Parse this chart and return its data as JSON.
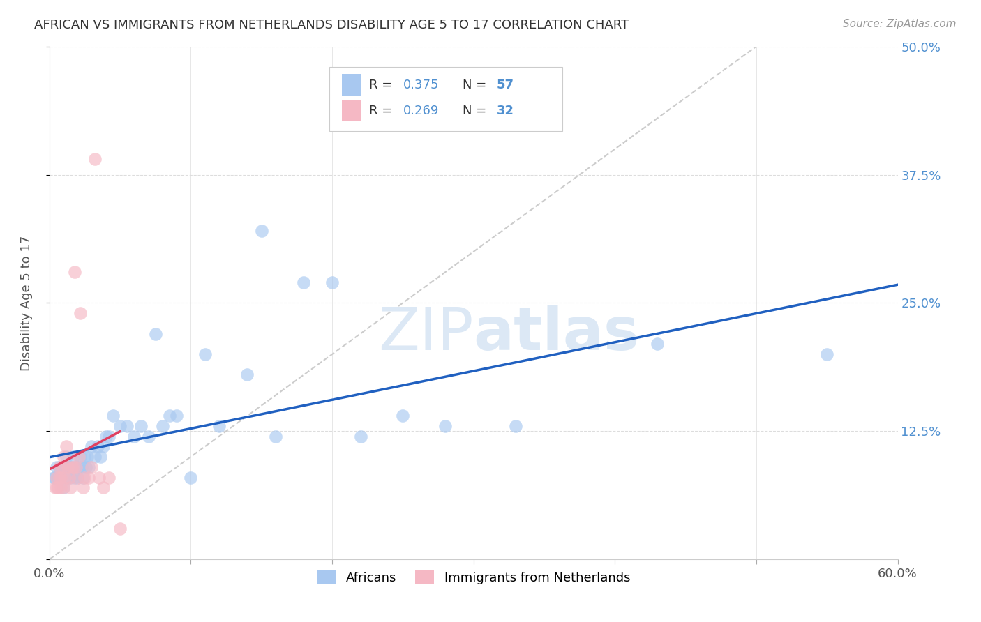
{
  "title": "AFRICAN VS IMMIGRANTS FROM NETHERLANDS DISABILITY AGE 5 TO 17 CORRELATION CHART",
  "source": "Source: ZipAtlas.com",
  "ylabel": "Disability Age 5 to 17",
  "xlim": [
    0.0,
    0.6
  ],
  "ylim": [
    0.0,
    0.5
  ],
  "blue_color": "#a8c8f0",
  "pink_color": "#f5b8c4",
  "blue_line_color": "#2060c0",
  "pink_line_color": "#e04060",
  "diagonal_color": "#cccccc",
  "grid_color": "#dddddd",
  "title_color": "#333333",
  "right_tick_color": "#5090d0",
  "watermark_color": "#dce8f5",
  "africans_x": [
    0.003,
    0.004,
    0.005,
    0.006,
    0.007,
    0.008,
    0.009,
    0.01,
    0.011,
    0.012,
    0.013,
    0.014,
    0.015,
    0.016,
    0.017,
    0.018,
    0.019,
    0.02,
    0.021,
    0.022,
    0.023,
    0.024,
    0.025,
    0.026,
    0.027,
    0.028,
    0.03,
    0.032,
    0.034,
    0.036,
    0.038,
    0.04,
    0.042,
    0.045,
    0.05,
    0.055,
    0.06,
    0.065,
    0.07,
    0.075,
    0.08,
    0.085,
    0.09,
    0.1,
    0.11,
    0.12,
    0.14,
    0.15,
    0.16,
    0.18,
    0.2,
    0.22,
    0.25,
    0.28,
    0.33,
    0.43,
    0.55
  ],
  "africans_y": [
    0.08,
    0.08,
    0.09,
    0.08,
    0.09,
    0.08,
    0.09,
    0.07,
    0.09,
    0.1,
    0.08,
    0.09,
    0.08,
    0.09,
    0.1,
    0.08,
    0.09,
    0.08,
    0.09,
    0.1,
    0.09,
    0.08,
    0.1,
    0.09,
    0.1,
    0.09,
    0.11,
    0.1,
    0.11,
    0.1,
    0.11,
    0.12,
    0.12,
    0.14,
    0.13,
    0.13,
    0.12,
    0.13,
    0.12,
    0.22,
    0.13,
    0.14,
    0.14,
    0.08,
    0.2,
    0.13,
    0.18,
    0.32,
    0.12,
    0.27,
    0.27,
    0.12,
    0.14,
    0.13,
    0.13,
    0.21,
    0.2
  ],
  "netherlands_x": [
    0.004,
    0.005,
    0.005,
    0.006,
    0.007,
    0.007,
    0.008,
    0.008,
    0.009,
    0.01,
    0.01,
    0.011,
    0.012,
    0.013,
    0.014,
    0.015,
    0.016,
    0.017,
    0.018,
    0.019,
    0.02,
    0.021,
    0.022,
    0.024,
    0.025,
    0.028,
    0.03,
    0.032,
    0.035,
    0.038,
    0.042,
    0.05
  ],
  "netherlands_y": [
    0.07,
    0.07,
    0.08,
    0.07,
    0.08,
    0.09,
    0.07,
    0.08,
    0.09,
    0.07,
    0.1,
    0.08,
    0.11,
    0.09,
    0.08,
    0.07,
    0.09,
    0.09,
    0.28,
    0.09,
    0.08,
    0.1,
    0.24,
    0.07,
    0.08,
    0.08,
    0.09,
    0.39,
    0.08,
    0.07,
    0.08,
    0.03
  ],
  "blue_R": "0.375",
  "blue_N": "57",
  "pink_R": "0.269",
  "pink_N": "32"
}
